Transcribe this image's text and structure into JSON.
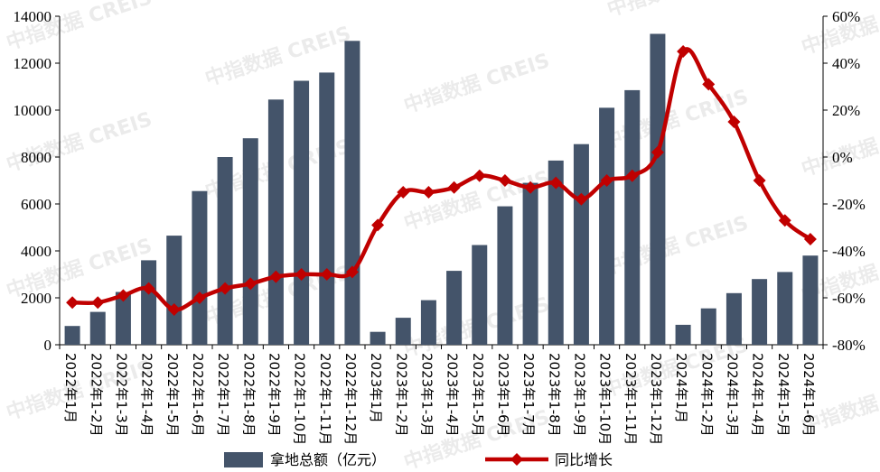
{
  "chart_data": {
    "type": "bar",
    "categories": [
      "2022年1月",
      "2022年1-2月",
      "2022年1-3月",
      "2022年1-4月",
      "2022年1-5月",
      "2022年1-6月",
      "2022年1-7月",
      "2022年1-8月",
      "2022年1-9月",
      "2022年1-10月",
      "2022年1-11月",
      "2022年1-12月",
      "2023年1月",
      "2023年1-2月",
      "2023年1-3月",
      "2023年1-4月",
      "2023年1-5月",
      "2023年1-6月",
      "2023年1-7月",
      "2023年1-8月",
      "2023年1-9月",
      "2023年1-10月",
      "2023年1-11月",
      "2023年1-12月",
      "2024年1月",
      "2024年1-2月",
      "2024年1-3月",
      "2024年1-4月",
      "2024年1-5月",
      "2024年1-6月"
    ],
    "series": [
      {
        "name": "拿地总额（亿元）",
        "type": "bar",
        "axis": "left",
        "color": "#44546a",
        "values": [
          800,
          1400,
          2250,
          3600,
          4650,
          6550,
          8000,
          8800,
          10450,
          11250,
          11600,
          12950,
          550,
          1150,
          1900,
          3150,
          4250,
          5900,
          6900,
          7850,
          8550,
          10100,
          10850,
          13250,
          850,
          1550,
          2200,
          2800,
          3100,
          3800
        ]
      },
      {
        "name": "同比增长",
        "type": "line",
        "axis": "right",
        "color": "#c00000",
        "values": [
          -62,
          -62,
          -59,
          -56,
          -65,
          -60,
          -56,
          -54,
          -51,
          -50,
          -50,
          -49,
          -29,
          -15,
          -15,
          -13,
          -8,
          -10,
          -13,
          -11,
          -18,
          -10,
          -8,
          2,
          45,
          31,
          15,
          -10,
          -27,
          -35
        ]
      }
    ],
    "y_left": {
      "min": 0,
      "max": 14000,
      "step": 2000,
      "ticks": [
        "0",
        "2000",
        "4000",
        "6000",
        "8000",
        "10000",
        "12000",
        "14000"
      ]
    },
    "y_right": {
      "min": -80,
      "max": 60,
      "step": 20,
      "ticks": [
        "-80%",
        "-60%",
        "-40%",
        "-20%",
        "0%",
        "20%",
        "40%",
        "60%"
      ]
    },
    "legend": {
      "position": "bottom",
      "items": [
        "拿地总额（亿元）",
        "同比增长"
      ]
    },
    "grid": false,
    "watermark": "中指数据 CREIS"
  }
}
